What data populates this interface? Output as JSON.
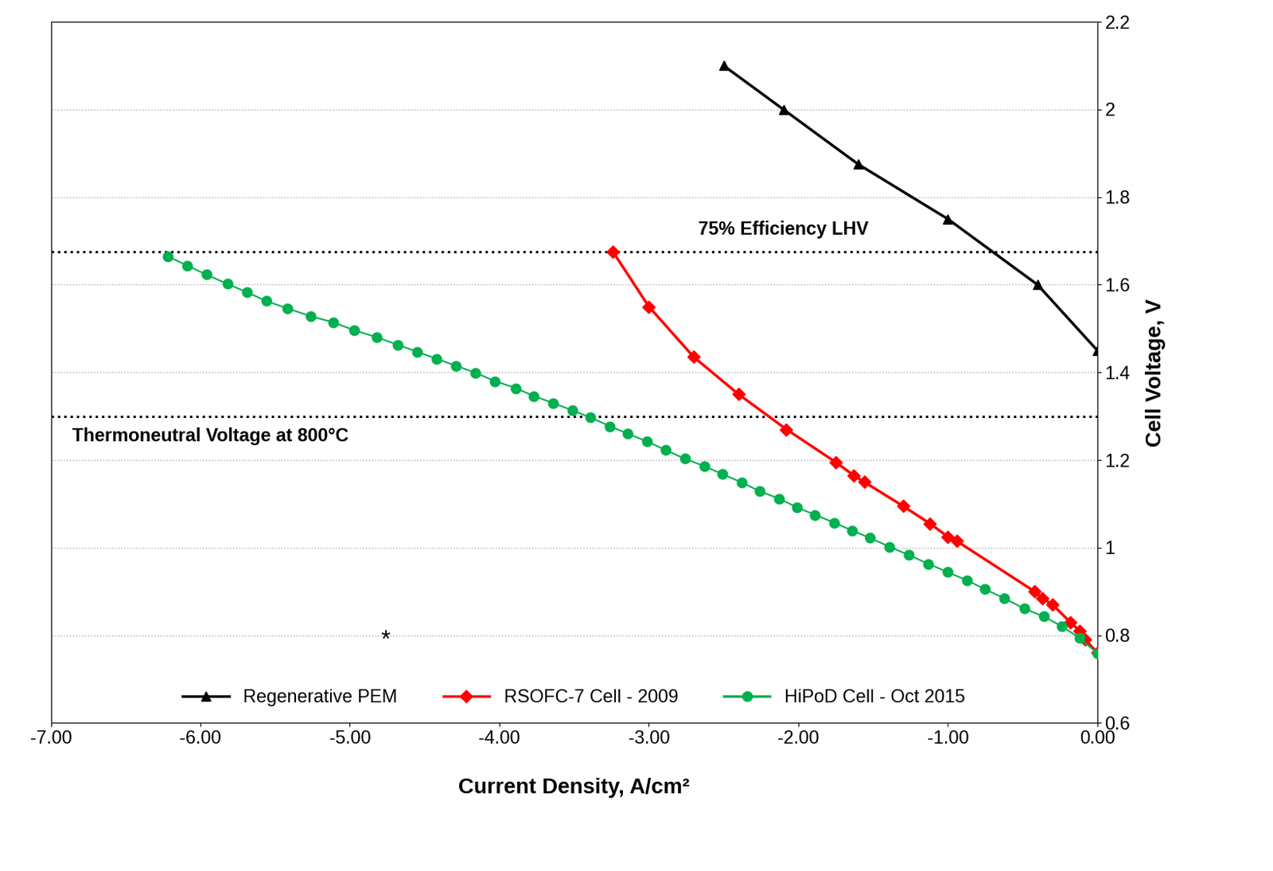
{
  "chart_data": {
    "type": "line",
    "x_label": "Current Density, A/cm²",
    "y_label": "Cell Voltage, V",
    "xlim": [
      -7,
      0
    ],
    "ylim": [
      0.6,
      2.2
    ],
    "xticks": [
      {
        "value": -7,
        "label": "-7.00"
      },
      {
        "value": -6,
        "label": "-6.00"
      },
      {
        "value": -5,
        "label": "-5.00"
      },
      {
        "value": -4,
        "label": "-4.00"
      },
      {
        "value": -3,
        "label": "-3.00"
      },
      {
        "value": -2,
        "label": "-2.00"
      },
      {
        "value": -1,
        "label": "-1.00"
      },
      {
        "value": 0,
        "label": "0.00"
      }
    ],
    "yticks": [
      0.6,
      0.8,
      1,
      1.2,
      1.4,
      1.6,
      1.8,
      2,
      2.2
    ],
    "grid": true,
    "legend": "lower center",
    "reference_lines": [
      {
        "label": "75% Efficiency LHV",
        "y": 1.675,
        "line_style": "dotted",
        "color": "#000000"
      },
      {
        "label": "Thermoneutral Voltage at 800°C",
        "y": 1.3,
        "line_style": "dotted",
        "color": "#000000"
      }
    ],
    "annotations": [
      "*"
    ],
    "series": [
      {
        "name": "Regenerative PEM",
        "color": "#000000",
        "marker": "triangle",
        "line_style": "solid",
        "x": [
          -2.5,
          -2.1,
          -1.6,
          -1.0,
          -0.4,
          0.0
        ],
        "values": [
          2.1,
          2.0,
          1.875,
          1.75,
          1.6,
          1.45
        ]
      },
      {
        "name": "RSOFC-7 Cell - 2009",
        "color": "#ff0000",
        "marker": "diamond",
        "line_style": "solid",
        "x": [
          -3.24,
          -3.0,
          -2.7,
          -2.4,
          -2.08,
          -1.75,
          -1.63,
          -1.56,
          -1.3,
          -1.12,
          -1.0,
          -0.94,
          -0.42,
          -0.37,
          -0.3,
          -0.18,
          -0.12,
          -0.08,
          0.0
        ],
        "values": [
          1.675,
          1.55,
          1.435,
          1.35,
          1.27,
          1.195,
          1.165,
          1.15,
          1.095,
          1.055,
          1.025,
          1.015,
          0.9,
          0.885,
          0.87,
          0.83,
          0.81,
          0.79,
          0.76
        ]
      },
      {
        "name": "HiPoD Cell - Oct 2015",
        "color": "#00b050",
        "marker": "circle",
        "line_style": "solid",
        "x": [
          -6.22,
          -6.09,
          -5.96,
          -5.82,
          -5.69,
          -5.56,
          -5.42,
          -5.26,
          -5.11,
          -4.97,
          -4.82,
          -4.68,
          -4.55,
          -4.42,
          -4.29,
          -4.16,
          -4.03,
          -3.89,
          -3.77,
          -3.64,
          -3.51,
          -3.39,
          -3.26,
          -3.14,
          -3.01,
          -2.89,
          -2.76,
          -2.63,
          -2.51,
          -2.38,
          -2.26,
          -2.13,
          -2.01,
          -1.89,
          -1.76,
          -1.64,
          -1.52,
          -1.39,
          -1.26,
          -1.13,
          -1.0,
          -0.87,
          -0.75,
          -0.62,
          -0.49,
          -0.36,
          -0.24,
          -0.12,
          0.0
        ],
        "values": [
          1.665,
          1.644,
          1.623,
          1.602,
          1.583,
          1.563,
          1.546,
          1.528,
          1.514,
          1.496,
          1.48,
          1.463,
          1.447,
          1.431,
          1.415,
          1.399,
          1.38,
          1.364,
          1.346,
          1.33,
          1.313,
          1.297,
          1.277,
          1.26,
          1.242,
          1.223,
          1.203,
          1.186,
          1.168,
          1.149,
          1.129,
          1.112,
          1.092,
          1.075,
          1.057,
          1.039,
          1.022,
          1.002,
          0.983,
          0.963,
          0.944,
          0.925,
          0.905,
          0.884,
          0.861,
          0.843,
          0.821,
          0.794,
          0.759
        ]
      }
    ]
  }
}
